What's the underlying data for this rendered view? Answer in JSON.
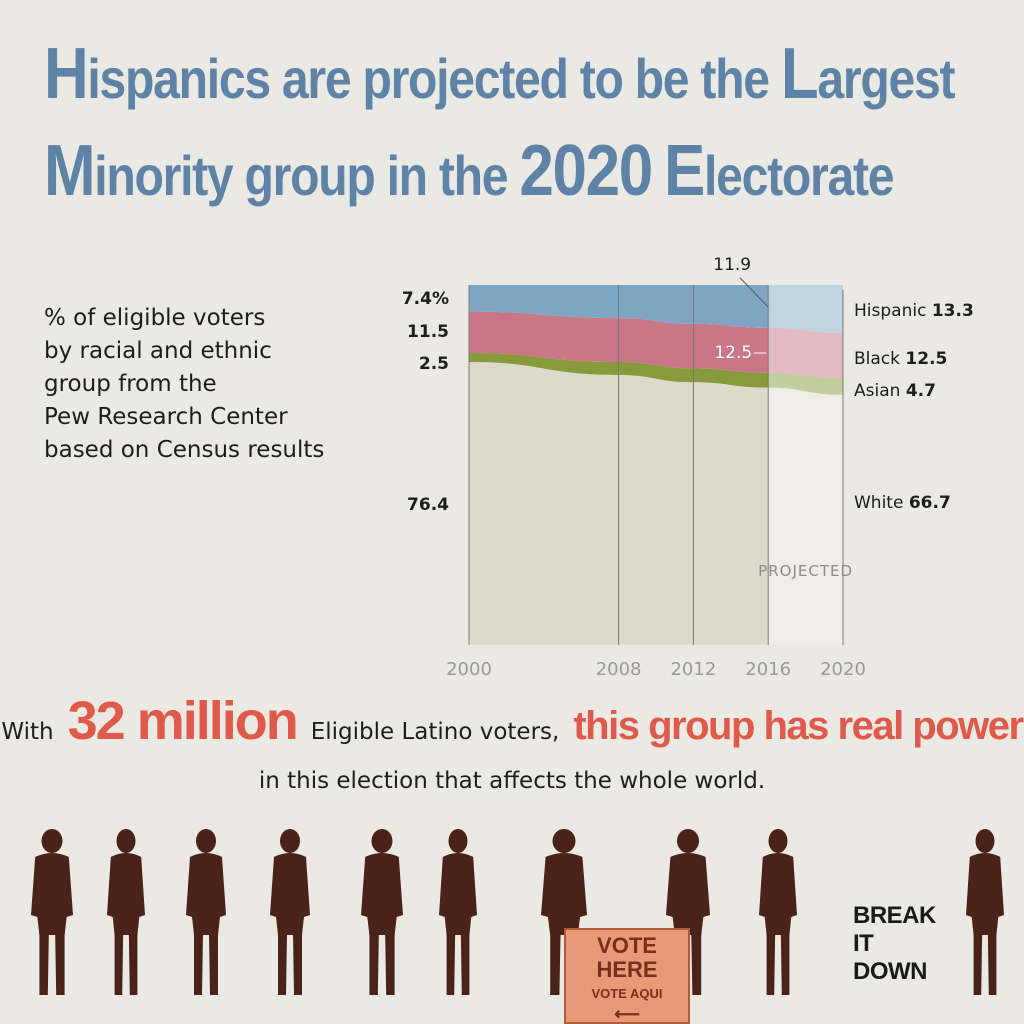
{
  "title": {
    "l1": [
      {
        "t": "H",
        "big": true
      },
      {
        "t": "ispanics are projected to be the ",
        "big": false
      },
      {
        "t": "L",
        "big": true
      },
      {
        "t": "argest",
        "big": false
      }
    ],
    "l2": [
      {
        "t": "M",
        "big": true
      },
      {
        "t": "inority group in the ",
        "big": false
      },
      {
        "t": "2020",
        "big": true
      },
      {
        "t": " ",
        "big": false
      },
      {
        "t": "E",
        "big": true
      },
      {
        "t": "lectorate",
        "big": false
      }
    ]
  },
  "subtitle": [
    "% of eligible voters",
    "by racial and ethnic",
    "group from the",
    "Pew Research Center",
    "based on Census results"
  ],
  "chart_data": {
    "type": "area",
    "stacked": true,
    "x": [
      2000,
      2008,
      2012,
      2016,
      2020
    ],
    "projected_from": 2016,
    "projected_label": "PROJECTED",
    "series": [
      {
        "name": "White",
        "values": [
          76.4,
          73.4,
          71.1,
          69.3,
          66.7
        ],
        "color": "#dedacb",
        "start_label": "76.4",
        "end_value": "66.7"
      },
      {
        "name": "Asian",
        "values": [
          2.5,
          3.6,
          3.8,
          4.1,
          4.7
        ],
        "color": "#879a3c",
        "start_label": "2.5",
        "end_value": "4.7"
      },
      {
        "name": "Black",
        "values": [
          11.5,
          12.2,
          12.4,
          12.5,
          12.5
        ],
        "color": "#c97686",
        "start_label": "11.5",
        "end_value": "12.5"
      },
      {
        "name": "Hispanic",
        "values": [
          7.4,
          9.2,
          10.8,
          11.9,
          13.3
        ],
        "color": "#7ea6c3",
        "start_label": "7.4%",
        "end_value": "13.3"
      }
    ],
    "annotations": [
      {
        "text": "11.9",
        "series": "Hispanic",
        "x": 2016
      },
      {
        "text": "12.5",
        "series": "Black",
        "x": 2016
      }
    ],
    "x_ticks": [
      "2000",
      "2008",
      "2012",
      "2016",
      "2020"
    ],
    "ylim": [
      0,
      100
    ]
  },
  "callout": {
    "pre": "With",
    "num": "32 million",
    "mid": "Eligible Latino voters,",
    "hl": "this group has real power",
    "line2": "in this election that affects the whole world."
  },
  "sign": {
    "l1": "VOTE",
    "l2": "HERE",
    "l3": "VOTE AQUI",
    "arrow": "⟵"
  },
  "logo": [
    "BREAK",
    "IT",
    "DOWN"
  ],
  "colors": {
    "title": "#5e83a6",
    "highlight": "#df5a4b",
    "background": "#eae9e3",
    "figures": "#4a2219"
  }
}
